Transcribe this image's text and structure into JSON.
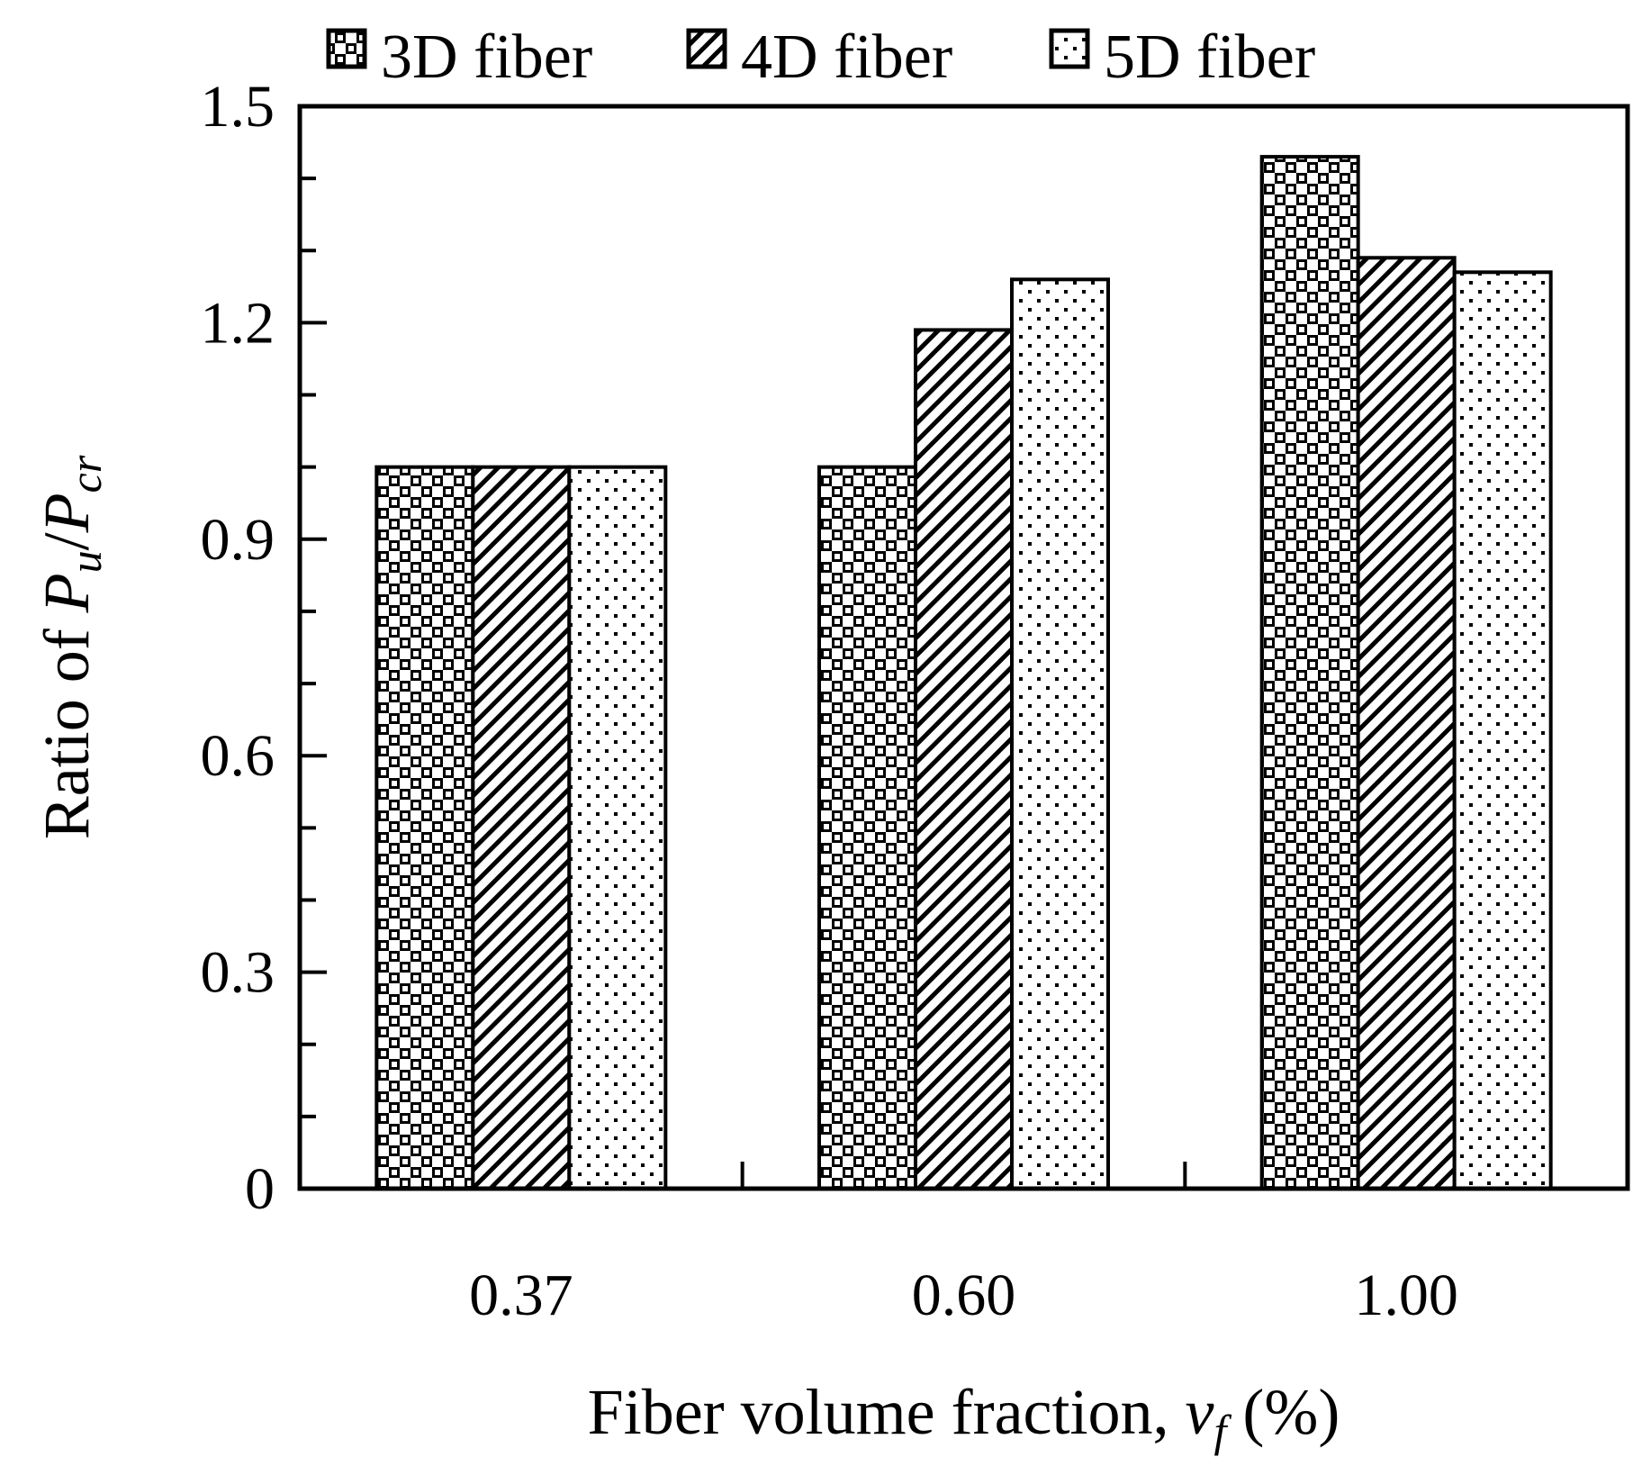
{
  "chart_data": {
    "type": "bar",
    "categories": [
      "0.37",
      "0.60",
      "1.00"
    ],
    "series": [
      {
        "name": "3D fiber",
        "values": [
          1.0,
          1.0,
          1.43
        ],
        "pattern": "checker"
      },
      {
        "name": "4D fiber",
        "values": [
          1.0,
          1.19,
          1.29
        ],
        "pattern": "diagonal"
      },
      {
        "name": "5D fiber",
        "values": [
          1.0,
          1.26,
          1.27
        ],
        "pattern": "dots"
      }
    ],
    "ylim": [
      0,
      1.5
    ],
    "yticks": [
      "0",
      "0.3",
      "0.6",
      "0.9",
      "1.2",
      "1.5"
    ],
    "ylabel": {
      "prefix": "Ratio of ",
      "var1": "P",
      "sub1": "u",
      "sep": "/",
      "var2": "P",
      "sub2": "cr"
    },
    "xlabel": {
      "prefix": "Fiber volume  fraction,  ",
      "var": "v",
      "sub": "f",
      "suffix": " (%)"
    },
    "legend_position": "top",
    "grid": false
  }
}
